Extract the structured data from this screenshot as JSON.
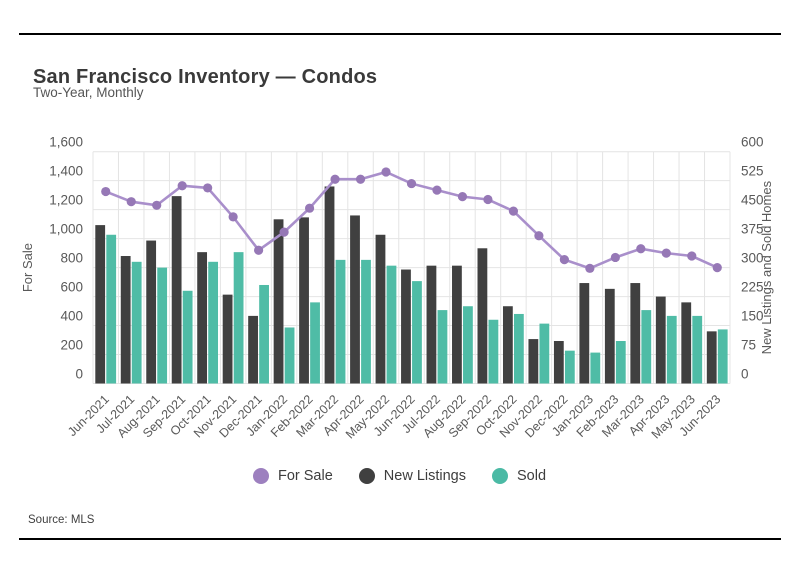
{
  "header": {
    "title": "San Francisco Inventory — Condos",
    "subtitle": "Two-Year, Monthly"
  },
  "footer": {
    "source": "Source: MLS"
  },
  "legend": [
    {
      "label": "For Sale",
      "color": "#9d80bf"
    },
    {
      "label": "New Listings",
      "color": "#404040"
    },
    {
      "label": "Sold",
      "color": "#4bbaa5"
    }
  ],
  "colors": {
    "line": "#a98fcb",
    "line_point": "#9678b6",
    "bar_new_listings": "#404040",
    "bar_sold": "#4fbca6",
    "gridline": "#e4e4e4",
    "axis_text": "#595959"
  },
  "chart_data": {
    "type": "line+bar",
    "title": "San Francisco Inventory — Condos",
    "subtitle": "Two-Year, Monthly",
    "grid": true,
    "legend_position": "bottom",
    "categories": [
      "Jun-2021",
      "Jul-2021",
      "Aug-2021",
      "Sep-2021",
      "Oct-2021",
      "Nov-2021",
      "Dec-2021",
      "Jan-2022",
      "Feb-2022",
      "Mar-2022",
      "Apr-2022",
      "May-2022",
      "Jun-2022",
      "Jul-2022",
      "Aug-2022",
      "Sep-2022",
      "Oct-2022",
      "Nov-2022",
      "Dec-2022",
      "Jan-2023",
      "Feb-2023",
      "Mar-2023",
      "Apr-2023",
      "May-2023",
      "Jun-2023"
    ],
    "series": [
      {
        "name": "For Sale",
        "type": "line",
        "axis": "left",
        "values": [
          1325,
          1255,
          1230,
          1365,
          1350,
          1150,
          920,
          1045,
          1210,
          1410,
          1410,
          1460,
          1380,
          1335,
          1290,
          1270,
          1190,
          1020,
          855,
          795,
          870,
          930,
          900,
          880,
          800
        ]
      },
      {
        "name": "New Listings",
        "type": "bar",
        "axis": "right",
        "values": [
          410,
          330,
          370,
          485,
          340,
          230,
          175,
          425,
          430,
          510,
          435,
          385,
          295,
          305,
          305,
          350,
          200,
          115,
          110,
          260,
          245,
          260,
          225,
          210,
          135
        ]
      },
      {
        "name": "Sold",
        "type": "bar",
        "axis": "right",
        "values": [
          385,
          315,
          300,
          240,
          315,
          340,
          255,
          145,
          210,
          320,
          320,
          305,
          265,
          190,
          200,
          165,
          180,
          155,
          85,
          80,
          110,
          190,
          175,
          175,
          140
        ]
      }
    ],
    "left_axis": {
      "label": "For Sale",
      "min": 0,
      "max": 1600,
      "step": 200,
      "ticks": [
        "0",
        "200",
        "400",
        "600",
        "800",
        "1,000",
        "1,200",
        "1,400",
        "1,600"
      ]
    },
    "right_axis": {
      "label": "New Listings and Sold Homes",
      "min": 0,
      "max": 600,
      "step": 75,
      "ticks": [
        "0",
        "75",
        "150",
        "225",
        "300",
        "375",
        "450",
        "525",
        "600"
      ]
    }
  }
}
